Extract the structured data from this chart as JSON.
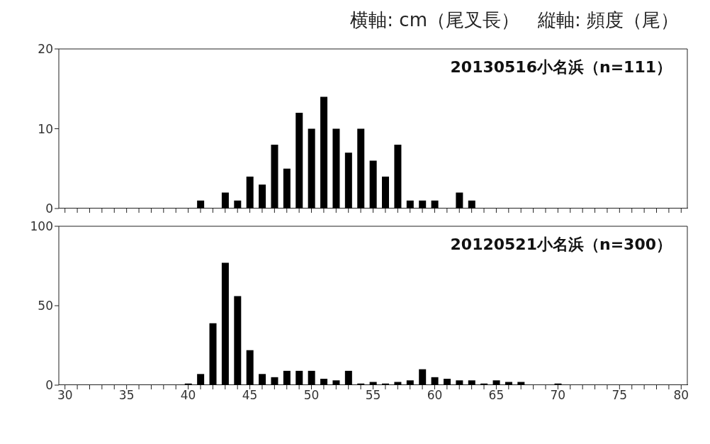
{
  "chart_data": [
    {
      "type": "bar",
      "title": "横軸: cm（尾叉長）　縦軸: 頻度（尾）",
      "annotations": [
        "20130516小名浜（n=111）"
      ],
      "categories": [
        "30",
        null,
        null,
        null,
        null,
        "35",
        null,
        null,
        null,
        null,
        "40",
        null,
        null,
        null,
        null,
        "45",
        null,
        null,
        null,
        null,
        "50",
        null,
        null,
        null,
        null,
        "55",
        null,
        null,
        null,
        null,
        "60",
        null,
        null,
        null,
        null,
        "65",
        null,
        null,
        null,
        null,
        "70",
        null,
        null,
        null,
        null,
        "75",
        null,
        null,
        null,
        null,
        "80"
      ],
      "values": [
        0,
        0,
        0,
        0,
        0,
        0,
        0,
        0,
        0,
        0,
        0,
        1,
        0,
        2,
        1,
        4,
        3,
        8,
        5,
        12,
        10,
        14,
        10,
        7,
        10,
        6,
        4,
        8,
        1,
        1,
        1,
        0,
        2,
        1,
        0,
        0,
        0,
        0,
        0,
        0,
        0,
        0,
        0,
        0,
        0,
        0,
        0,
        0,
        0,
        0,
        0
      ],
      "color": "#000000",
      "ylim": [
        0,
        20
      ],
      "yticks": [
        0,
        10,
        20
      ],
      "tick_labels": "y"
    },
    {
      "type": "bar",
      "annotations": [
        "20120521小名浜（n=300）"
      ],
      "categories": [
        "30",
        null,
        null,
        null,
        null,
        "35",
        null,
        null,
        null,
        null,
        "40",
        null,
        null,
        null,
        null,
        "45",
        null,
        null,
        null,
        null,
        "50",
        null,
        null,
        null,
        null,
        "55",
        null,
        null,
        null,
        null,
        "60",
        null,
        null,
        null,
        null,
        "65",
        null,
        null,
        null,
        null,
        "70",
        null,
        null,
        null,
        null,
        "75",
        null,
        null,
        null,
        null,
        "80"
      ],
      "values": [
        0,
        0,
        0,
        0,
        0,
        0,
        0,
        0,
        0,
        0,
        1,
        7,
        39,
        77,
        56,
        22,
        7,
        5,
        9,
        9,
        9,
        4,
        3,
        9,
        1,
        2,
        1,
        2,
        3,
        10,
        5,
        4,
        3,
        3,
        1,
        3,
        2,
        2,
        0,
        0,
        1,
        0,
        0,
        0,
        0,
        0,
        0,
        0,
        0,
        0,
        0
      ],
      "color": "#000000",
      "ylim": [
        0,
        100
      ],
      "yticks": [
        0,
        50,
        100
      ]
    }
  ]
}
